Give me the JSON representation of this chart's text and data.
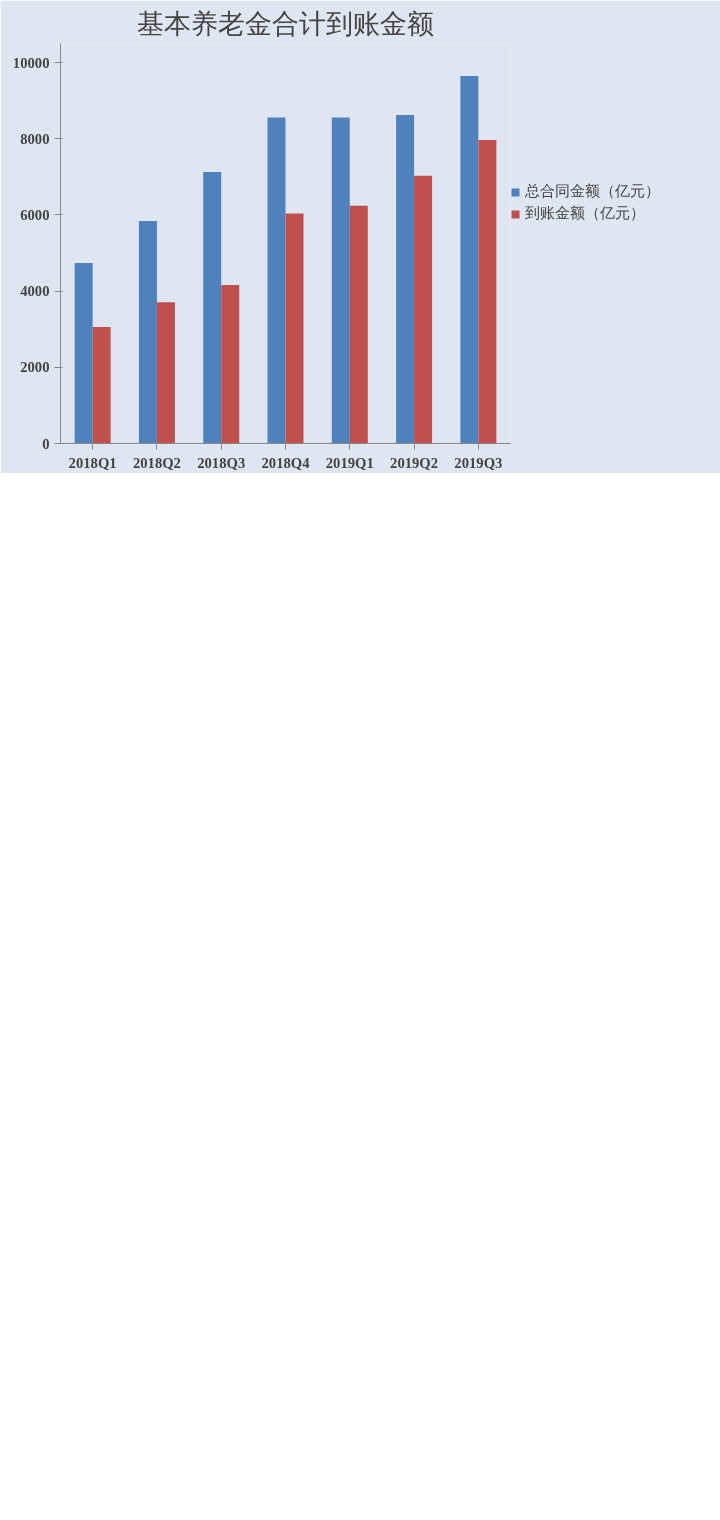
{
  "chart_data": {
    "type": "bar",
    "title": "基本养老金合计到账金额",
    "categories": [
      "2018Q1",
      "2018Q2",
      "2018Q3",
      "2018Q4",
      "2019Q1",
      "2019Q2",
      "2019Q3"
    ],
    "series": [
      {
        "name": "总合同金额（亿元）",
        "color": "#4f81bd",
        "values": [
          4740,
          5840,
          7130,
          8560,
          8560,
          8620,
          9650
        ]
      },
      {
        "name": "到账金额（亿元）",
        "color": "#c0504d",
        "values": [
          3060,
          3710,
          4160,
          6040,
          6240,
          7030,
          7970
        ]
      }
    ],
    "ylim": [
      0,
      10500
    ],
    "yticks": [
      0,
      2000,
      4000,
      6000,
      8000,
      10000
    ],
    "legend": "right"
  }
}
